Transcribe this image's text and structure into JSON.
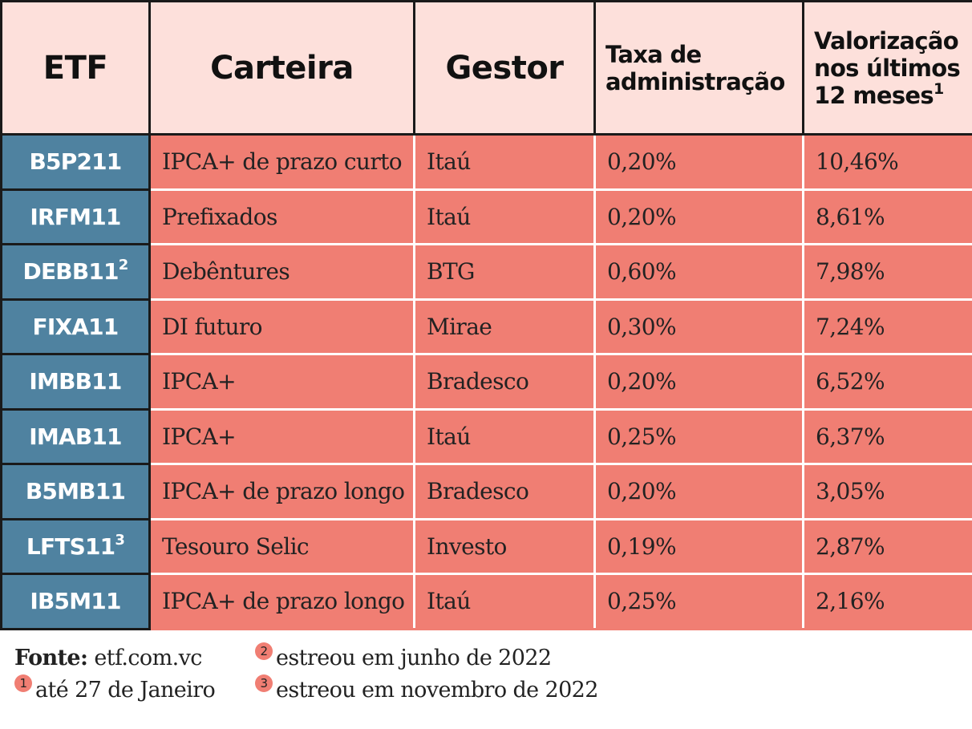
{
  "table": {
    "headers": {
      "etf": "ETF",
      "carteira": "Carteira",
      "gestor": "Gestor",
      "taxa_line1": "Taxa de",
      "taxa_line2": "administração",
      "valorizacao_line1": "Valorização",
      "valorizacao_line2": "nos últimos",
      "valorizacao_line3": "12 meses",
      "valorizacao_sup": "1"
    },
    "rows": [
      {
        "etf": "B5P211",
        "etf_sup": "",
        "carteira": "IPCA+ de prazo curto",
        "gestor": "Itaú",
        "taxa": "0,20%",
        "valorizacao": "10,46%"
      },
      {
        "etf": "IRFM11",
        "etf_sup": "",
        "carteira": "Prefixados",
        "gestor": "Itaú",
        "taxa": "0,20%",
        "valorizacao": "8,61%"
      },
      {
        "etf": "DEBB11",
        "etf_sup": "2",
        "carteira": "Debêntures",
        "gestor": "BTG",
        "taxa": "0,60%",
        "valorizacao": "7,98%"
      },
      {
        "etf": "FIXA11",
        "etf_sup": "",
        "carteira": "DI futuro",
        "gestor": "Mirae",
        "taxa": "0,30%",
        "valorizacao": "7,24%"
      },
      {
        "etf": "IMBB11",
        "etf_sup": "",
        "carteira": "IPCA+",
        "gestor": "Bradesco",
        "taxa": "0,20%",
        "valorizacao": "6,52%"
      },
      {
        "etf": "IMAB11",
        "etf_sup": "",
        "carteira": "IPCA+",
        "gestor": "Itaú",
        "taxa": "0,25%",
        "valorizacao": "6,37%"
      },
      {
        "etf": "B5MB11",
        "etf_sup": "",
        "carteira": "IPCA+ de prazo longo",
        "gestor": "Bradesco",
        "taxa": "0,20%",
        "valorizacao": "3,05%"
      },
      {
        "etf": "LFTS11",
        "etf_sup": "3",
        "carteira": "Tesouro Selic",
        "gestor": "Investo",
        "taxa": "0,19%",
        "valorizacao": "2,87%"
      },
      {
        "etf": "IB5M11",
        "etf_sup": "",
        "carteira": "IPCA+ de prazo longo",
        "gestor": "Itaú",
        "taxa": "0,25%",
        "valorizacao": "2,16%"
      }
    ]
  },
  "footnotes": {
    "source_label": "Fonte:",
    "source_value": "etf.com.vc",
    "notes": [
      {
        "marker": "1",
        "text": "até 27 de Janeiro"
      },
      {
        "marker": "2",
        "text": "estreou em junho de 2022"
      },
      {
        "marker": "3",
        "text": "estreou em novembro de 2022"
      }
    ]
  },
  "colors": {
    "header_bg": "#fde0db",
    "etf_column_bg": "#4f82a0",
    "data_cell_bg": "#f07e73",
    "border": "#1a1a1a"
  }
}
